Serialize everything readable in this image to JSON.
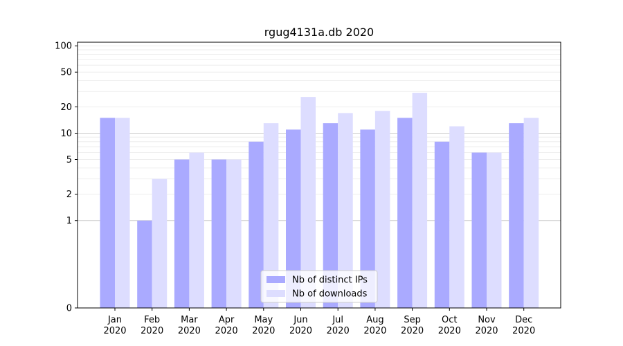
{
  "chart_data": {
    "type": "bar",
    "title": "rgug4131a.db 2020",
    "xlabel": "",
    "ylabel": "",
    "y_scale": "symlog",
    "ylim": [
      0,
      110
    ],
    "y_ticks": [
      0,
      1,
      2,
      5,
      10,
      20,
      50,
      100
    ],
    "categories": [
      "Jan\n2020",
      "Feb\n2020",
      "Mar\n2020",
      "Apr\n2020",
      "May\n2020",
      "Jun\n2020",
      "Jul\n2020",
      "Aug\n2020",
      "Sep\n2020",
      "Oct\n2020",
      "Nov\n2020",
      "Dec\n2020"
    ],
    "series": [
      {
        "name": "Nb of distinct IPs",
        "color": "#aaaaff",
        "values": [
          15,
          1,
          5,
          5,
          8,
          11,
          13,
          11,
          15,
          8,
          6,
          13
        ]
      },
      {
        "name": "Nb of downloads",
        "color": "#ddddff",
        "values": [
          15,
          3,
          6,
          5,
          13,
          26,
          17,
          18,
          29,
          12,
          6,
          15
        ]
      }
    ],
    "grid": true,
    "legend_position": "bottom-center"
  }
}
